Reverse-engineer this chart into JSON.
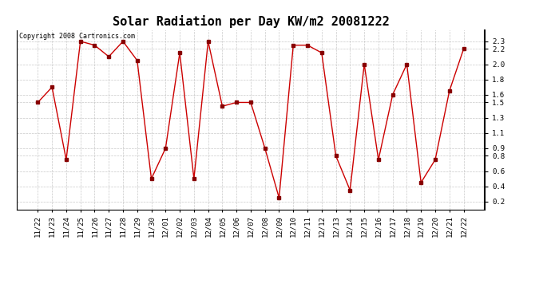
{
  "title": "Solar Radiation per Day KW/m2 20081222",
  "copyright_text": "Copyright 2008 Cartronics.com",
  "dates": [
    "11/22",
    "11/23",
    "11/24",
    "11/25",
    "11/26",
    "11/27",
    "11/28",
    "11/29",
    "11/30",
    "12/01",
    "12/02",
    "12/03",
    "12/04",
    "12/05",
    "12/06",
    "12/07",
    "12/08",
    "12/09",
    "12/10",
    "12/11",
    "12/12",
    "12/13",
    "12/14",
    "12/15",
    "12/16",
    "12/17",
    "12/18",
    "12/19",
    "12/20",
    "12/21",
    "12/22"
  ],
  "values": [
    1.5,
    1.7,
    0.75,
    2.3,
    2.25,
    2.1,
    2.3,
    2.05,
    0.5,
    0.9,
    2.15,
    0.5,
    2.3,
    1.45,
    1.5,
    1.5,
    0.9,
    0.25,
    2.25,
    2.25,
    2.15,
    0.8,
    0.35,
    2.0,
    0.75,
    1.6,
    2.0,
    0.45,
    0.75,
    1.65,
    2.2
  ],
  "line_color": "#cc0000",
  "marker_color": "#880000",
  "marker_style": "s",
  "marker_size": 2.5,
  "ylim": [
    0.1,
    2.45
  ],
  "ytick_vals": [
    0.2,
    0.4,
    0.6,
    0.8,
    0.9,
    1.1,
    1.3,
    1.5,
    1.6,
    1.8,
    2.0,
    2.2,
    2.3
  ],
  "ytick_labels": [
    "0.2",
    "0.4",
    "0.6",
    "0.8",
    "0.9",
    "1.1",
    "1.3",
    "1.5",
    "1.6",
    "1.8",
    "2.0",
    "2.2",
    "2.3"
  ],
  "background_color": "#ffffff",
  "plot_bg_color": "#ffffff",
  "grid_color": "#bbbbbb",
  "title_fontsize": 11,
  "tick_fontsize": 6.5,
  "copyright_fontsize": 6
}
